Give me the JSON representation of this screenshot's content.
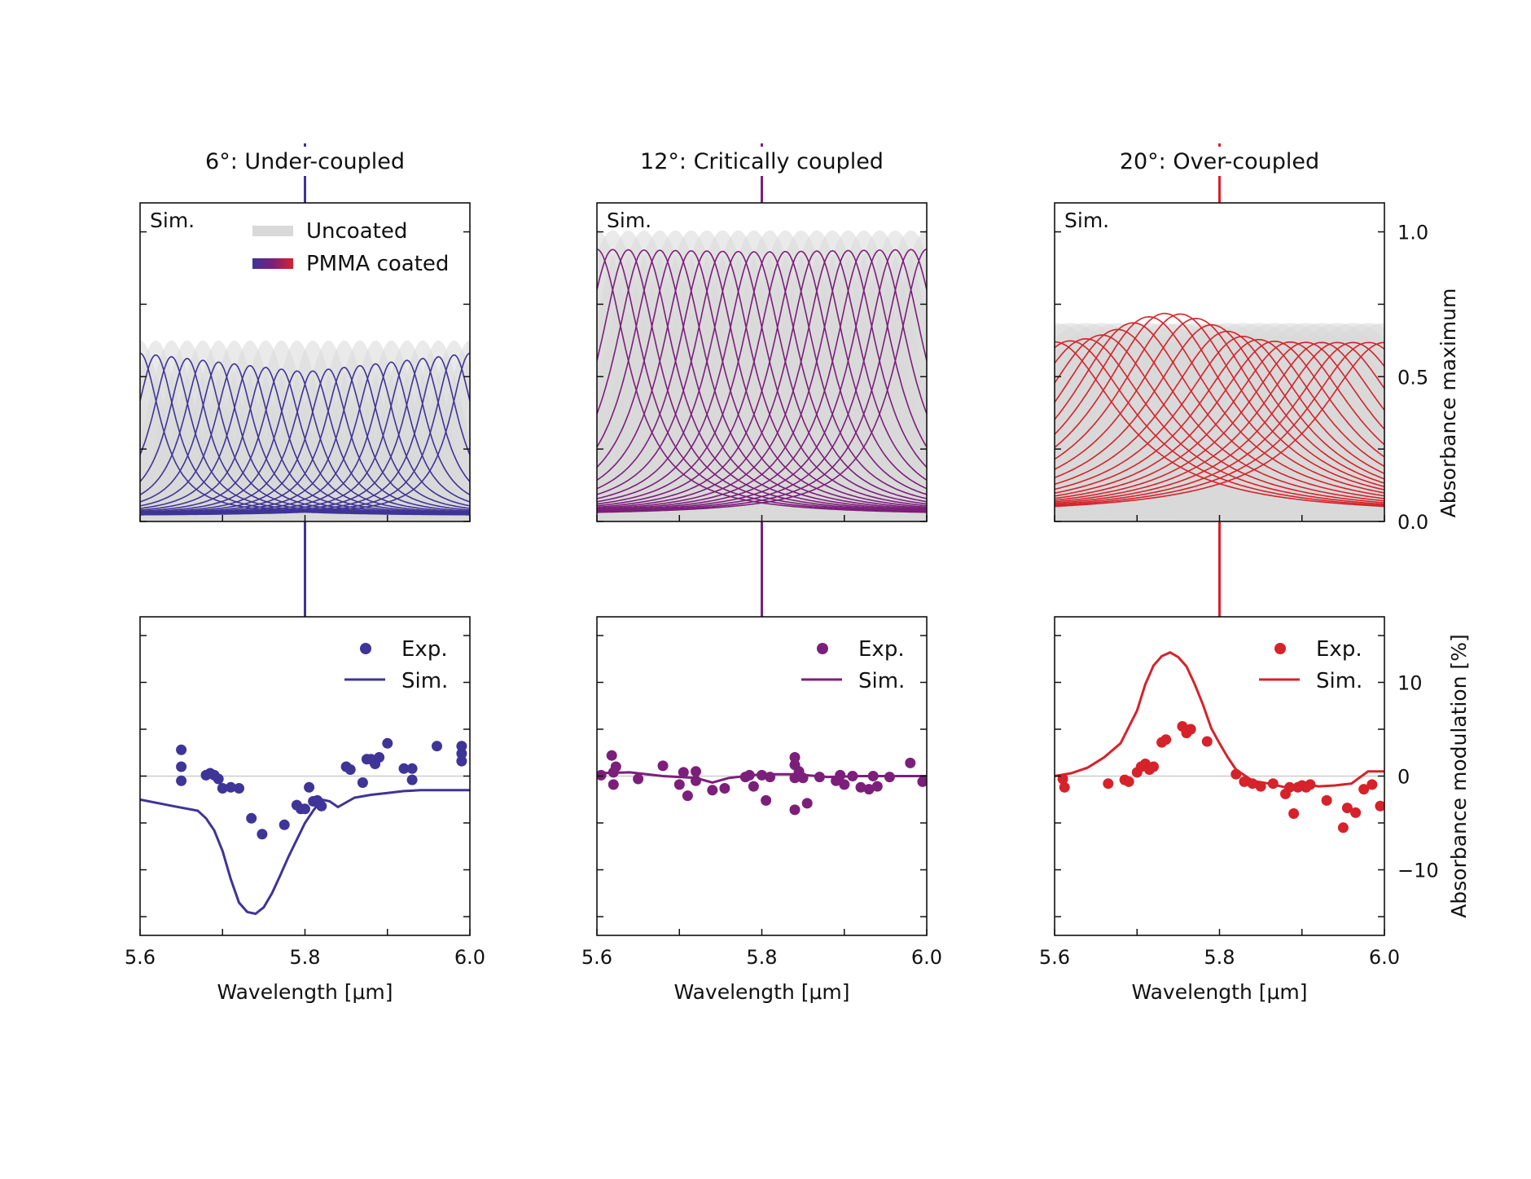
{
  "colors": {
    "under": "#3f3497",
    "critical": "#7c1f7a",
    "over": "#d6222a",
    "uncoated": "#d9d9d9",
    "zero_line": "#cccccc"
  },
  "legend_top": {
    "uncoated": "Uncoated",
    "coated": "PMMA coated"
  },
  "legend_bottom": {
    "exp": "Exp.",
    "sim": "Sim."
  },
  "sim_label": "Sim.",
  "axes": {
    "xlabel": "Wavelength [μm]",
    "xticks": [
      "5.6",
      "5.8",
      "6.0"
    ],
    "y_top_label": "Absorbance maximum",
    "y_top_ticks": [
      "0.0",
      "0.5",
      "1.0"
    ],
    "y_bottom_label": "Absorbance modulation [%]",
    "y_bottom_ticks": [
      "−10",
      "0",
      "10"
    ]
  },
  "chart_data": [
    {
      "type": "line",
      "title": "6°: Under-coupled",
      "panel": "top",
      "xlim": [
        5.6,
        6.0
      ],
      "ylim": [
        0,
        1.1
      ],
      "uncoated_peak_max": 0.62,
      "coated_peak_max": 0.61,
      "coated_peak_center_dip": 0.54,
      "peak_width_um": 0.03
    },
    {
      "type": "scatter",
      "title": "6°: Under-coupled",
      "panel": "bottom",
      "xlim": [
        5.6,
        6.0
      ],
      "ylim": [
        -17,
        17
      ],
      "series": [
        {
          "name": "Exp.",
          "x": [
            5.65,
            5.65,
            5.65,
            5.68,
            5.685,
            5.69,
            5.695,
            5.7,
            5.71,
            5.72,
            5.735,
            5.748,
            5.775,
            5.79,
            5.795,
            5.8,
            5.805,
            5.81,
            5.815,
            5.82,
            5.85,
            5.855,
            5.87,
            5.875,
            5.88,
            5.885,
            5.89,
            5.9,
            5.92,
            5.93,
            5.93,
            5.96,
            5.99,
            5.99,
            5.99
          ],
          "y": [
            2.8,
            1.0,
            -0.5,
            0.1,
            0.3,
            0.1,
            -0.3,
            -1.3,
            -1.2,
            -1.3,
            -4.5,
            -6.2,
            -5.2,
            -3.1,
            -3.5,
            -3.5,
            -1.2,
            -2.7,
            -2.6,
            -3.2,
            1.0,
            0.7,
            -0.7,
            1.8,
            1.8,
            1.3,
            2.0,
            3.5,
            0.8,
            0.8,
            -0.4,
            3.2,
            2.4,
            3.2,
            1.6
          ]
        },
        {
          "name": "Sim.",
          "x": [
            5.6,
            5.64,
            5.67,
            5.68,
            5.69,
            5.7,
            5.71,
            5.72,
            5.73,
            5.74,
            5.75,
            5.76,
            5.77,
            5.78,
            5.79,
            5.8,
            5.81,
            5.82,
            5.83,
            5.84,
            5.86,
            5.88,
            5.9,
            5.92,
            5.94,
            5.96,
            5.98,
            6.0
          ],
          "y": [
            -2.5,
            -3.2,
            -3.7,
            -4.5,
            -5.8,
            -8.0,
            -11.0,
            -13.5,
            -14.5,
            -14.7,
            -14.0,
            -12.5,
            -10.6,
            -8.6,
            -6.8,
            -5.0,
            -3.7,
            -2.5,
            -2.7,
            -3.3,
            -2.3,
            -2.0,
            -1.8,
            -1.6,
            -1.5,
            -1.5,
            -1.5,
            -1.5
          ]
        }
      ]
    },
    {
      "type": "line",
      "title": "12°: Critically coupled",
      "panel": "top",
      "xlim": [
        5.6,
        6.0
      ],
      "ylim": [
        0,
        1.1
      ],
      "uncoated_peak_max": 1.0,
      "coated_peak_max": 1.0,
      "coated_peak_center_dip": 0.99,
      "peak_width_um": 0.045
    },
    {
      "type": "scatter",
      "title": "12°: Critically coupled",
      "panel": "bottom",
      "xlim": [
        5.6,
        6.0
      ],
      "ylim": [
        -17,
        17
      ],
      "series": [
        {
          "name": "Exp.",
          "x": [
            5.605,
            5.618,
            5.62,
            5.62,
            5.623,
            5.65,
            5.68,
            5.7,
            5.705,
            5.71,
            5.72,
            5.72,
            5.74,
            5.755,
            5.78,
            5.785,
            5.79,
            5.8,
            5.805,
            5.81,
            5.84,
            5.84,
            5.84,
            5.84,
            5.845,
            5.85,
            5.855,
            5.87,
            5.89,
            5.895,
            5.9,
            5.91,
            5.92,
            5.93,
            5.935,
            5.94,
            5.955,
            5.98,
            5.995
          ],
          "y": [
            0.1,
            2.2,
            -0.9,
            0.4,
            1.0,
            -0.3,
            1.1,
            -0.9,
            0.4,
            -2.1,
            0.5,
            -0.5,
            -1.5,
            -1.3,
            -0.1,
            0.1,
            -1.1,
            0.1,
            -2.6,
            -0.1,
            2.0,
            1.2,
            -0.2,
            -3.6,
            0.5,
            -0.2,
            -2.9,
            -0.1,
            -0.5,
            0.1,
            -0.9,
            0.0,
            -1.2,
            -1.4,
            0.0,
            -1.1,
            -0.1,
            1.4,
            -0.6
          ]
        },
        {
          "name": "Sim.",
          "x": [
            5.6,
            5.64,
            5.68,
            5.72,
            5.74,
            5.76,
            5.8,
            5.84,
            5.88,
            5.92,
            5.96,
            6.0
          ],
          "y": [
            0.3,
            0.4,
            0.0,
            -0.2,
            -0.7,
            -0.2,
            0.2,
            0.2,
            -0.1,
            0.0,
            0.0,
            0.0
          ]
        }
      ]
    },
    {
      "type": "line",
      "title": "20°: Over-coupled",
      "panel": "top",
      "xlim": [
        5.6,
        6.0
      ],
      "ylim": [
        0,
        1.1
      ],
      "uncoated_peak_max": 0.68,
      "coated_peak_max": 0.76,
      "coated_peak_center_dip": 0.6,
      "peak_width_um": 0.095
    },
    {
      "type": "scatter",
      "title": "20°: Over-coupled",
      "panel": "bottom",
      "xlim": [
        5.6,
        6.0
      ],
      "ylim": [
        -17,
        17
      ],
      "series": [
        {
          "name": "Exp.",
          "x": [
            5.61,
            5.612,
            5.665,
            5.685,
            5.69,
            5.7,
            5.705,
            5.71,
            5.715,
            5.72,
            5.73,
            5.735,
            5.755,
            5.76,
            5.765,
            5.765,
            5.785,
            5.82,
            5.83,
            5.84,
            5.85,
            5.865,
            5.88,
            5.885,
            5.89,
            5.895,
            5.9,
            5.905,
            5.91,
            5.93,
            5.95,
            5.955,
            5.965,
            5.975,
            5.985,
            5.995
          ],
          "y": [
            -0.3,
            -1.2,
            -0.8,
            -0.4,
            -0.6,
            0.4,
            1.0,
            1.3,
            0.7,
            1.0,
            3.6,
            3.9,
            5.3,
            4.6,
            5.0,
            5.0,
            3.7,
            0.2,
            -0.6,
            -0.8,
            -1.1,
            -0.8,
            -1.9,
            -1.2,
            -4.0,
            -1.2,
            -1.0,
            -1.2,
            -0.9,
            -2.6,
            -5.5,
            -3.4,
            -3.9,
            -1.4,
            -0.9,
            -3.2
          ]
        },
        {
          "name": "Sim.",
          "x": [
            5.6,
            5.62,
            5.64,
            5.66,
            5.68,
            5.7,
            5.71,
            5.72,
            5.73,
            5.74,
            5.75,
            5.76,
            5.77,
            5.78,
            5.79,
            5.8,
            5.81,
            5.82,
            5.84,
            5.86,
            5.88,
            5.9,
            5.92,
            5.94,
            5.96,
            5.98,
            6.0
          ],
          "y": [
            0.0,
            0.3,
            0.9,
            2.0,
            3.5,
            7.0,
            9.8,
            11.8,
            12.8,
            13.2,
            12.7,
            11.7,
            9.8,
            7.6,
            5.1,
            3.5,
            2.0,
            0.7,
            -0.5,
            -0.8,
            -1.2,
            -0.8,
            -1.1,
            -1.0,
            -0.8,
            0.5,
            0.5
          ]
        }
      ]
    }
  ]
}
